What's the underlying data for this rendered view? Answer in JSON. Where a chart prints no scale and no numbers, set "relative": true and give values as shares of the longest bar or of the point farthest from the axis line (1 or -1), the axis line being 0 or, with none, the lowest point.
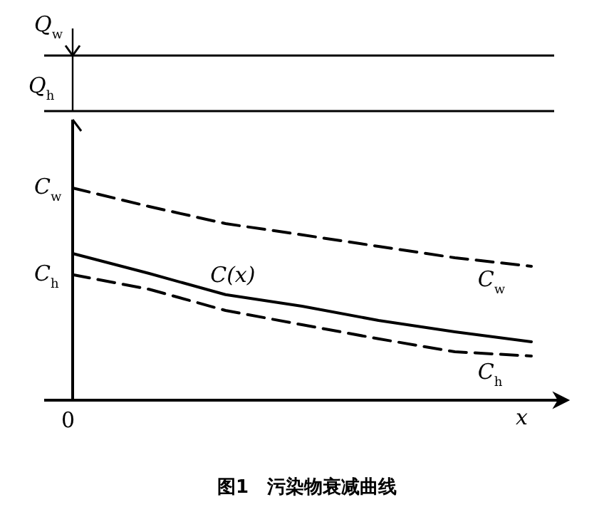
{
  "chart_data": {
    "type": "line",
    "relative": true,
    "title": "图1　污染物衰减曲线",
    "xlabel": "x",
    "categories": [
      null,
      null,
      null,
      null,
      null,
      null,
      null
    ],
    "series": [
      {
        "name": "C$_{w}$",
        "color": "#000000",
        "line_style": "dashed",
        "values": [
          1,
          0.913,
          0.832,
          0.779,
          0.725,
          0.671,
          0.631
        ]
      },
      {
        "name": "C(x)",
        "color": "#000000",
        "line_style": "solid",
        "values": [
          0.691,
          0.597,
          0.497,
          0.443,
          0.376,
          0.322,
          0.275
        ]
      },
      {
        "name": "C$_{h}$",
        "color": "#000000",
        "line_style": "dashed",
        "values": [
          0.591,
          0.523,
          0.423,
          0.356,
          0.289,
          0.228,
          0.208
        ]
      }
    ],
    "annotations": [
      "Q$_{w}$",
      "Q$_{h}$",
      "0",
      "C$_{w}$",
      "C$_{h}$"
    ],
    "legend": false
  }
}
